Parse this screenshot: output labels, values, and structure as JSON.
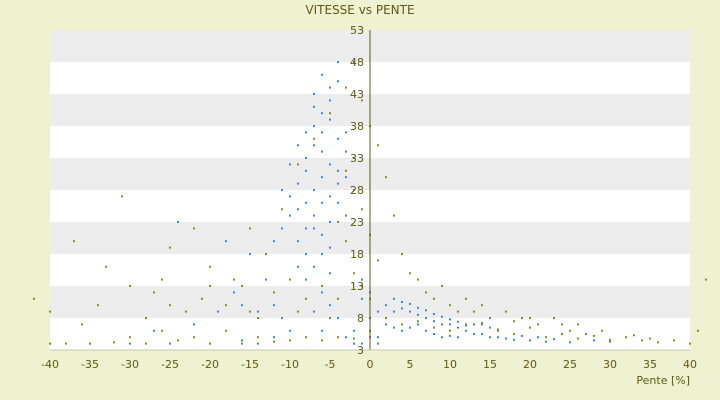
{
  "chart_data": {
    "type": "scatter",
    "title": "VITESSE vs PENTE",
    "xlabel": "Pente [%]",
    "ylabel": "",
    "xlim": [
      -40,
      40
    ],
    "ylim": [
      3,
      53
    ],
    "x_ticks": [
      "-40",
      "-35",
      "-30",
      "-25",
      "-20",
      "-15",
      "-10",
      "-5",
      "0",
      "5",
      "10",
      "15",
      "20",
      "25",
      "30",
      "35",
      "40"
    ],
    "y_ticks": [
      "3",
      "8",
      "13",
      "18",
      "23",
      "28",
      "33",
      "38",
      "43",
      "48",
      "53"
    ],
    "grid": "alternating horizontal bands",
    "legend": "none",
    "colors": {
      "page_bg": "#eef2d0",
      "band_white": "#ffffff",
      "band_grey": "#ececec",
      "text": "#5a5a14",
      "axis": "#5a5a14",
      "series_1": "#8a8a1e",
      "series_2": "#3b86d6"
    },
    "series": [
      {
        "color": "#3b86d6",
        "points": [
          [
            -6,
            30
          ],
          [
            -7,
            28
          ],
          [
            -5,
            32
          ],
          [
            -8,
            26
          ],
          [
            -6,
            34
          ],
          [
            -4,
            36
          ],
          [
            -9,
            25
          ],
          [
            -7,
            38
          ],
          [
            -5,
            42
          ],
          [
            -6,
            46
          ],
          [
            -8,
            33
          ],
          [
            -10,
            27
          ],
          [
            -4,
            29
          ],
          [
            -3,
            24
          ],
          [
            -7,
            22
          ],
          [
            -9,
            20
          ],
          [
            -6,
            18
          ],
          [
            -5,
            15
          ],
          [
            -8,
            14
          ],
          [
            -6,
            12
          ],
          [
            -5,
            10
          ],
          [
            -7,
            9
          ],
          [
            -4,
            8
          ],
          [
            -6,
            6
          ],
          [
            -3,
            5
          ],
          [
            -2,
            4
          ],
          [
            -5,
            44
          ],
          [
            -4,
            48
          ],
          [
            -6,
            40
          ],
          [
            -7,
            35
          ],
          [
            -8,
            31
          ],
          [
            -9,
            29
          ],
          [
            -10,
            24
          ],
          [
            -11,
            22
          ],
          [
            -12,
            20
          ],
          [
            -11,
            28
          ],
          [
            -10,
            32
          ],
          [
            -9,
            35
          ],
          [
            -8,
            37
          ],
          [
            -7,
            41
          ],
          [
            -3,
            37
          ],
          [
            -2,
            33
          ],
          [
            -3,
            30
          ],
          [
            -4,
            26
          ],
          [
            -5,
            23
          ],
          [
            -6,
            21
          ],
          [
            -8,
            18
          ],
          [
            -9,
            16
          ],
          [
            -7,
            16
          ],
          [
            -5,
            19
          ],
          [
            2,
            10
          ],
          [
            3,
            9
          ],
          [
            4,
            9.5
          ],
          [
            5,
            9
          ],
          [
            6,
            8.5
          ],
          [
            7,
            8
          ],
          [
            8,
            7.5
          ],
          [
            9,
            7
          ],
          [
            10,
            7
          ],
          [
            11,
            6.5
          ],
          [
            12,
            6
          ],
          [
            13,
            5.5
          ],
          [
            14,
            5.5
          ],
          [
            15,
            5
          ],
          [
            16,
            5
          ],
          [
            17,
            4.8
          ],
          [
            18,
            4.6
          ],
          [
            20,
            4.5
          ],
          [
            22,
            4.3
          ],
          [
            25,
            4.2
          ],
          [
            3,
            11
          ],
          [
            4,
            10.5
          ],
          [
            5,
            10.2
          ],
          [
            6,
            9.6
          ],
          [
            7,
            9.2
          ],
          [
            8,
            8.6
          ],
          [
            9,
            8.2
          ],
          [
            10,
            7.8
          ],
          [
            11,
            7.4
          ],
          [
            12,
            7
          ],
          [
            2,
            7
          ],
          [
            3,
            6.5
          ],
          [
            4,
            6
          ],
          [
            5,
            6.5
          ],
          [
            6,
            7
          ],
          [
            7,
            6
          ],
          [
            8,
            5.5
          ],
          [
            9,
            5
          ],
          [
            10,
            5.2
          ],
          [
            11,
            5
          ],
          [
            1,
            5
          ],
          [
            1,
            4
          ],
          [
            0,
            5
          ],
          [
            0,
            8
          ],
          [
            0,
            12
          ],
          [
            1,
            9
          ],
          [
            -1,
            4
          ],
          [
            -2,
            6
          ],
          [
            -1,
            11
          ],
          [
            -1,
            14
          ],
          [
            -10,
            6
          ],
          [
            -12,
            5
          ],
          [
            -14,
            4
          ],
          [
            -16,
            4.5
          ],
          [
            -20,
            4
          ],
          [
            -22,
            7
          ],
          [
            -25,
            4
          ],
          [
            -27,
            6
          ],
          [
            -30,
            4
          ],
          [
            -35,
            4
          ],
          [
            -24,
            23
          ],
          [
            -18,
            20
          ],
          [
            -15,
            18
          ],
          [
            -13,
            14
          ],
          [
            -16,
            10
          ],
          [
            -19,
            9
          ],
          [
            -17,
            12
          ],
          [
            -11,
            8
          ],
          [
            -12,
            10
          ],
          [
            -14,
            9
          ],
          [
            13,
            7
          ],
          [
            14,
            7.2
          ],
          [
            15,
            6.5
          ],
          [
            16,
            6
          ],
          [
            18,
            5.5
          ],
          [
            19,
            5.2
          ],
          [
            21,
            5
          ],
          [
            23,
            4.7
          ],
          [
            28,
            4.5
          ],
          [
            30,
            4.3
          ],
          [
            -6,
            26
          ],
          [
            -7,
            24
          ],
          [
            -8,
            22
          ],
          [
            -5,
            27
          ],
          [
            -4,
            31
          ],
          [
            -3,
            34
          ],
          [
            -6,
            37
          ],
          [
            -5,
            39
          ],
          [
            -7,
            43
          ],
          [
            -4,
            45
          ]
        ]
      },
      {
        "color": "#8a8a1e",
        "points": [
          [
            -40,
            4
          ],
          [
            -38,
            4
          ],
          [
            -35,
            4
          ],
          [
            -32,
            4.2
          ],
          [
            -30,
            5
          ],
          [
            -28,
            4
          ],
          [
            -26,
            6
          ],
          [
            -24,
            4.5
          ],
          [
            -22,
            5
          ],
          [
            -20,
            4
          ],
          [
            -18,
            6
          ],
          [
            -16,
            4
          ],
          [
            -14,
            5
          ],
          [
            -12,
            4.3
          ],
          [
            -10,
            4.5
          ],
          [
            -8,
            5
          ],
          [
            -6,
            4.5
          ],
          [
            -4,
            5
          ],
          [
            -2,
            4.8
          ],
          [
            0,
            6
          ],
          [
            2,
            8
          ],
          [
            4,
            7
          ],
          [
            6,
            7.5
          ],
          [
            8,
            6.5
          ],
          [
            10,
            6
          ],
          [
            12,
            6.8
          ],
          [
            14,
            7
          ],
          [
            16,
            6.2
          ],
          [
            18,
            5.5
          ],
          [
            20,
            6.5
          ],
          [
            22,
            5
          ],
          [
            24,
            5.5
          ],
          [
            26,
            4.8
          ],
          [
            28,
            5.2
          ],
          [
            30,
            4.6
          ],
          [
            32,
            5
          ],
          [
            34,
            4.5
          ],
          [
            36,
            4.2
          ],
          [
            38,
            4.5
          ],
          [
            40,
            4
          ],
          [
            -42,
            11
          ],
          [
            -40,
            9
          ],
          [
            -37,
            20
          ],
          [
            -33,
            16
          ],
          [
            -31,
            27
          ],
          [
            -27,
            12
          ],
          [
            -25,
            19
          ],
          [
            -22,
            22
          ],
          [
            -20,
            16
          ],
          [
            -17,
            14
          ],
          [
            -15,
            22
          ],
          [
            -13,
            18
          ],
          [
            -11,
            25
          ],
          [
            -9,
            32
          ],
          [
            -7,
            36
          ],
          [
            -5,
            40
          ],
          [
            -3,
            44
          ],
          [
            -2,
            48
          ],
          [
            -1,
            42
          ],
          [
            0,
            38
          ],
          [
            1,
            35
          ],
          [
            2,
            30
          ],
          [
            3,
            24
          ],
          [
            4,
            18
          ],
          [
            5,
            15
          ],
          [
            6,
            14
          ],
          [
            7,
            12
          ],
          [
            8,
            11
          ],
          [
            9,
            13
          ],
          [
            10,
            10
          ],
          [
            11,
            9
          ],
          [
            12,
            11
          ],
          [
            13,
            9
          ],
          [
            14,
            10
          ],
          [
            15,
            8
          ],
          [
            17,
            9
          ],
          [
            19,
            8
          ],
          [
            21,
            7
          ],
          [
            23,
            8
          ],
          [
            26,
            7
          ],
          [
            -3,
            31
          ],
          [
            -2,
            28
          ],
          [
            -1,
            25
          ],
          [
            0,
            21
          ],
          [
            1,
            17
          ],
          [
            -4,
            23
          ],
          [
            -3,
            20
          ],
          [
            -2,
            15
          ],
          [
            -1,
            13
          ],
          [
            0,
            11
          ],
          [
            42,
            14
          ],
          [
            41,
            6
          ],
          [
            35,
            4.8
          ],
          [
            33,
            5.3
          ],
          [
            29,
            6
          ],
          [
            27,
            5.5
          ],
          [
            25,
            6
          ],
          [
            24,
            7
          ],
          [
            20,
            8
          ],
          [
            18,
            7.5
          ],
          [
            -18,
            10
          ],
          [
            -16,
            13
          ],
          [
            -14,
            8
          ],
          [
            -12,
            12
          ],
          [
            -10,
            14
          ],
          [
            -9,
            9
          ],
          [
            -8,
            11
          ],
          [
            -6,
            13
          ],
          [
            -5,
            8
          ],
          [
            -4,
            11
          ],
          [
            -21,
            11
          ],
          [
            -23,
            9
          ],
          [
            -26,
            14
          ],
          [
            -28,
            8
          ],
          [
            -34,
            10
          ],
          [
            -36,
            7
          ],
          [
            -30,
            13
          ],
          [
            -25,
            10
          ],
          [
            -20,
            13
          ],
          [
            -15,
            9
          ]
        ]
      }
    ]
  }
}
